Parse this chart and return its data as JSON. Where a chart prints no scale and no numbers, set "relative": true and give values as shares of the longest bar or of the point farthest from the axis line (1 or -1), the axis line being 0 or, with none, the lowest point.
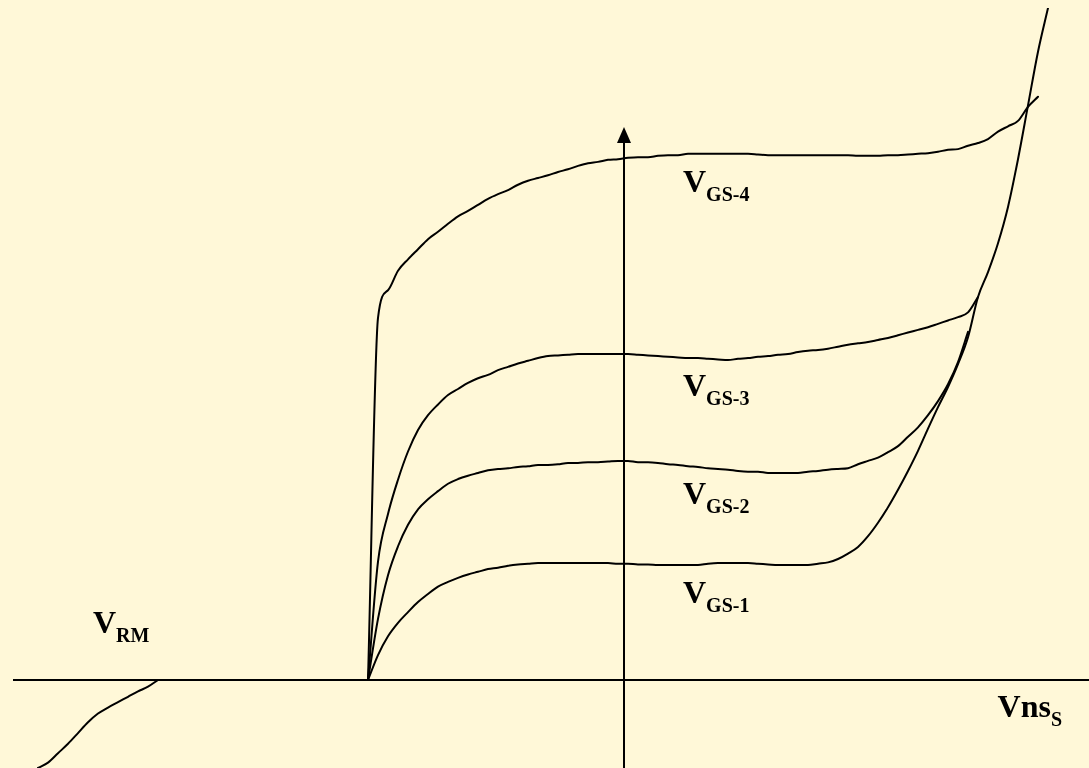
{
  "chart_data": {
    "type": "line",
    "relative": true,
    "xlabel": "Vns$_{S}$",
    "annotations": [
      "V$_{RM}$"
    ],
    "categories": [
      null,
      null,
      null,
      null,
      null,
      null,
      null,
      null,
      null,
      null,
      null,
      null,
      null,
      null,
      null,
      null,
      null,
      null,
      null,
      null,
      null,
      null,
      null,
      null,
      null,
      null,
      null,
      null,
      null,
      null,
      null,
      null,
      null,
      null,
      null,
      null,
      null,
      null,
      null,
      null,
      null,
      null,
      null,
      null,
      null,
      null,
      null,
      null,
      null,
      null,
      null,
      null,
      null,
      null,
      null,
      null,
      null,
      null,
      null,
      null,
      null,
      null,
      null,
      null,
      null,
      null,
      null,
      null,
      null,
      null,
      null,
      null,
      null,
      null,
      null,
      null,
      null,
      null,
      null,
      null,
      null,
      null,
      null,
      null,
      null,
      null,
      null,
      null,
      null,
      null,
      null,
      null,
      null,
      null,
      null,
      null,
      null,
      null,
      null,
      null,
      null,
      null,
      null,
      null,
      null,
      null,
      null,
      null,
      null
    ],
    "series": [
      {
        "name": "V$_{GS-4}$",
        "color": "#000000",
        "values": [
          null,
          null,
          null,
          null,
          null,
          null,
          null,
          null,
          null,
          null,
          null,
          null,
          null,
          null,
          null,
          null,
          null,
          null,
          null,
          null,
          null,
          null,
          null,
          null,
          null,
          null,
          null,
          null,
          null,
          null,
          null,
          null,
          null,
          null,
          null,
          null,
          0,
          0.539,
          0.58,
          0.609,
          0.626,
          0.641,
          0.656,
          0.667,
          0.679,
          0.69,
          0.698,
          0.707,
          0.716,
          0.723,
          0.729,
          0.737,
          0.743,
          0.747,
          0.751,
          0.756,
          0.76,
          0.765,
          0.769,
          0.771,
          0.774,
          0.775,
          0.777,
          0.778,
          0.778,
          0.78,
          0.781,
          0.781,
          0.783,
          0.783,
          0.783,
          0.783,
          0.783,
          0.783,
          0.783,
          0.782,
          0.781,
          0.781,
          0.781,
          0.781,
          0.781,
          0.781,
          0.781,
          0.781,
          0.781,
          0.78,
          0.78,
          0.78,
          0.781,
          0.781,
          0.782,
          0.783,
          0.784,
          0.786,
          0.789,
          0.79,
          0.795,
          0.799,
          0.805,
          0.816,
          0.824,
          0.832,
          0.853,
          0.868,
          null,
          null,
          null,
          null,
          null
        ]
      },
      {
        "name": "V$_{GS-3}$",
        "color": "#000000",
        "values": [
          null,
          null,
          null,
          null,
          null,
          null,
          null,
          null,
          null,
          null,
          null,
          null,
          null,
          null,
          null,
          null,
          null,
          null,
          null,
          null,
          null,
          null,
          null,
          null,
          null,
          null,
          null,
          null,
          null,
          null,
          null,
          null,
          null,
          null,
          null,
          null,
          0,
          0.176,
          0.247,
          0.298,
          0.34,
          0.372,
          0.394,
          0.41,
          0.424,
          0.433,
          0.442,
          0.449,
          0.454,
          0.461,
          0.466,
          0.471,
          0.475,
          0.479,
          0.482,
          0.483,
          0.484,
          0.485,
          0.485,
          0.485,
          0.485,
          0.485,
          0.485,
          0.484,
          0.483,
          0.482,
          0.481,
          0.48,
          0.479,
          0.479,
          0.478,
          0.477,
          0.476,
          0.478,
          0.479,
          0.481,
          0.482,
          0.484,
          0.485,
          0.488,
          0.49,
          0.491,
          0.493,
          0.496,
          0.499,
          0.501,
          0.503,
          0.506,
          0.509,
          0.513,
          0.517,
          0.521,
          0.525,
          0.53,
          0.535,
          0.54,
          0.547,
          0.57,
          null,
          null,
          null,
          null,
          null,
          null,
          null,
          null,
          null,
          null,
          null
        ]
      },
      {
        "name": "V$_{GS-2}$",
        "color": "#000000",
        "values": [
          null,
          null,
          null,
          null,
          null,
          null,
          null,
          null,
          null,
          null,
          null,
          null,
          null,
          null,
          null,
          null,
          null,
          null,
          null,
          null,
          null,
          null,
          null,
          null,
          null,
          null,
          null,
          null,
          null,
          null,
          null,
          null,
          null,
          null,
          null,
          null,
          0,
          0.091,
          0.156,
          0.199,
          0.231,
          0.254,
          0.269,
          0.281,
          0.292,
          0.299,
          0.304,
          0.308,
          0.312,
          0.314,
          0.315,
          0.317,
          0.318,
          0.32,
          0.32,
          0.321,
          0.323,
          0.323,
          0.324,
          0.324,
          0.325,
          0.326,
          0.326,
          0.324,
          0.324,
          0.323,
          0.321,
          0.32,
          0.318,
          0.317,
          0.315,
          0.314,
          0.313,
          0.311,
          0.31,
          0.31,
          0.308,
          0.308,
          0.308,
          0.308,
          0.31,
          0.311,
          0.313,
          0.314,
          0.315,
          0.321,
          0.326,
          0.331,
          0.339,
          0.348,
          0.362,
          0.376,
          0.394,
          0.415,
          0.44,
          0.473,
          0.518,
          null,
          null,
          null,
          null,
          null,
          null,
          null,
          null,
          null,
          null,
          null,
          null
        ]
      },
      {
        "name": "V$_{GS-1}$",
        "color": "#000000",
        "values": [
          null,
          null,
          null,
          null,
          null,
          null,
          null,
          null,
          null,
          null,
          null,
          null,
          null,
          null,
          null,
          null,
          null,
          null,
          null,
          null,
          null,
          null,
          null,
          null,
          null,
          null,
          null,
          null,
          null,
          null,
          null,
          null,
          null,
          null,
          null,
          null,
          0,
          0.037,
          0.065,
          0.085,
          0.101,
          0.116,
          0.128,
          0.139,
          0.146,
          0.152,
          0.157,
          0.161,
          0.165,
          0.167,
          0.17,
          0.172,
          0.173,
          0.174,
          0.174,
          0.174,
          0.174,
          0.174,
          0.174,
          0.174,
          0.174,
          0.173,
          0.173,
          0.172,
          0.172,
          0.171,
          0.171,
          0.171,
          0.171,
          0.171,
          0.173,
          0.174,
          0.174,
          0.174,
          0.174,
          0.173,
          0.172,
          0.171,
          0.171,
          0.171,
          0.171,
          0.173,
          0.175,
          0.18,
          0.188,
          0.198,
          0.214,
          0.234,
          0.257,
          0.283,
          0.311,
          0.341,
          0.374,
          0.406,
          0.436,
          0.47,
          0.51,
          0.57,
          0.607,
          0.65,
          0.704,
          0.775,
          0.855,
          0.935,
          1,
          null,
          null,
          null,
          null
        ]
      },
      {
        "color": "#000000",
        "values": [
          null,
          null,
          null,
          -0.131,
          -0.123,
          -0.109,
          -0.095,
          -0.079,
          -0.063,
          -0.05,
          -0.041,
          -0.033,
          -0.025,
          -0.017,
          -0.01,
          0,
          null,
          null,
          null,
          null,
          null,
          null,
          null,
          null,
          null,
          null,
          null,
          null,
          null,
          null,
          null,
          null,
          null,
          null,
          null,
          null,
          null,
          null,
          null,
          null,
          null,
          null,
          null,
          null,
          null,
          null,
          null,
          null,
          null,
          null,
          null,
          null,
          null,
          null,
          null,
          null,
          null,
          null,
          null,
          null,
          null,
          null,
          null,
          null,
          null,
          null,
          null,
          null,
          null,
          null,
          null,
          null,
          null,
          null,
          null,
          null,
          null,
          null,
          null,
          null,
          null,
          null,
          null,
          null,
          null,
          null,
          null,
          null,
          null,
          null,
          null,
          null,
          null,
          null,
          null,
          null,
          null,
          null,
          null,
          null,
          null,
          null,
          null,
          null,
          null,
          null,
          null,
          null,
          null
        ]
      }
    ]
  }
}
